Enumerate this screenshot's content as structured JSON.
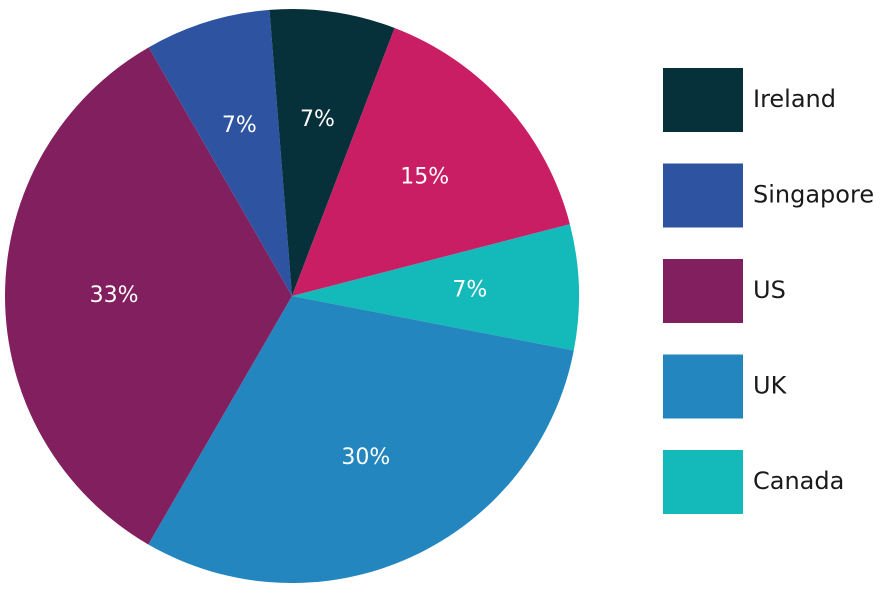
{
  "chart_data": {
    "type": "pie",
    "title": "",
    "slices": [
      {
        "label": "Canada",
        "value": 7,
        "value_label": "7%",
        "color": "#14B9BA"
      },
      {
        "label": "UK",
        "value": 30,
        "value_label": "30%",
        "color": "#2386BE"
      },
      {
        "label": "US",
        "value": 33,
        "value_label": "33%",
        "color": "#821F5F"
      },
      {
        "label": "Singapore",
        "value": 7,
        "value_label": "7%",
        "color": "#2E54A1"
      },
      {
        "label": "Ireland",
        "value": 7,
        "value_label": "7%",
        "color": "#06303A"
      },
      {
        "label": "",
        "value": 15,
        "value_label": "15%",
        "color": "#C91D64"
      }
    ],
    "legend": {
      "position": "right",
      "items": [
        {
          "label": "Ireland",
          "color": "#06303A"
        },
        {
          "label": "Singapore",
          "color": "#2E54A1"
        },
        {
          "label": "US",
          "color": "#821F5F"
        },
        {
          "label": "UK",
          "color": "#2386BE"
        },
        {
          "label": "Canada",
          "color": "#14B9BA"
        }
      ]
    }
  }
}
